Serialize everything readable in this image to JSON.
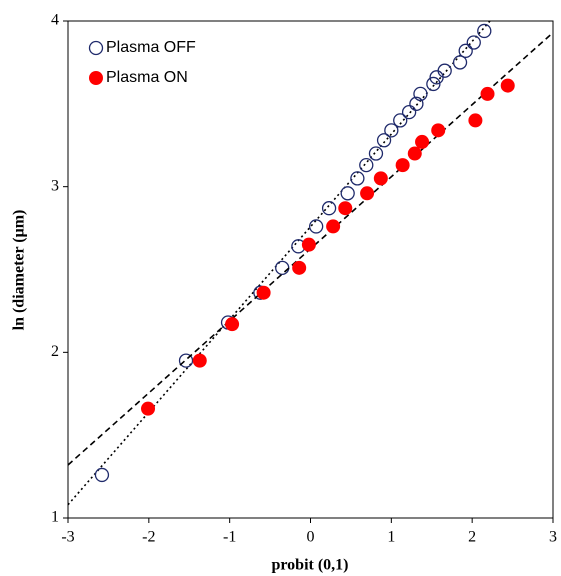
{
  "chart_data": {
    "type": "scatter",
    "x_label": "probit (0,1)",
    "y_label": "ln (diameter (μm)",
    "xlim": [
      -3,
      3
    ],
    "ylim": [
      1,
      4
    ],
    "xticks": [
      -3,
      -2,
      -1,
      0,
      1,
      2,
      3
    ],
    "yticks": [
      1,
      2,
      3,
      4
    ],
    "grid": false,
    "legend": "upper left",
    "series": [
      {
        "name": "Plasma OFF",
        "color": "#1f2a6b",
        "marker": "open",
        "x": [
          -2.58,
          -1.54,
          -1.02,
          -0.62,
          -0.35,
          -0.15,
          0.07,
          0.23,
          0.46,
          0.58,
          0.69,
          0.81,
          0.91,
          1.0,
          1.11,
          1.22,
          1.31,
          1.36,
          1.52,
          1.56,
          1.66,
          1.85,
          1.92,
          2.02,
          2.15
        ],
        "values": [
          1.26,
          1.95,
          2.18,
          2.36,
          2.51,
          2.64,
          2.76,
          2.87,
          2.96,
          3.05,
          3.13,
          3.2,
          3.28,
          3.34,
          3.4,
          3.45,
          3.5,
          3.56,
          3.62,
          3.66,
          3.7,
          3.75,
          3.82,
          3.87,
          3.94
        ],
        "trendline": {
          "style": "dotted",
          "x": [
            -3,
            2.22
          ],
          "values": [
            1.08,
            4
          ]
        }
      },
      {
        "name": "Plasma ON",
        "color": "#ff0000",
        "marker": "filled",
        "x": [
          -2.01,
          -1.37,
          -0.97,
          -0.58,
          -0.14,
          -0.02,
          0.28,
          0.43,
          0.7,
          0.87,
          1.14,
          1.29,
          1.38,
          1.58,
          2.04,
          2.19,
          2.44
        ],
        "values": [
          1.66,
          1.95,
          2.17,
          2.36,
          2.51,
          2.65,
          2.76,
          2.87,
          2.96,
          3.05,
          3.13,
          3.2,
          3.27,
          3.34,
          3.4,
          3.56,
          3.61
        ],
        "trendline": {
          "style": "dashed",
          "x": [
            -3,
            3
          ],
          "values": [
            1.32,
            3.93
          ]
        }
      }
    ]
  }
}
